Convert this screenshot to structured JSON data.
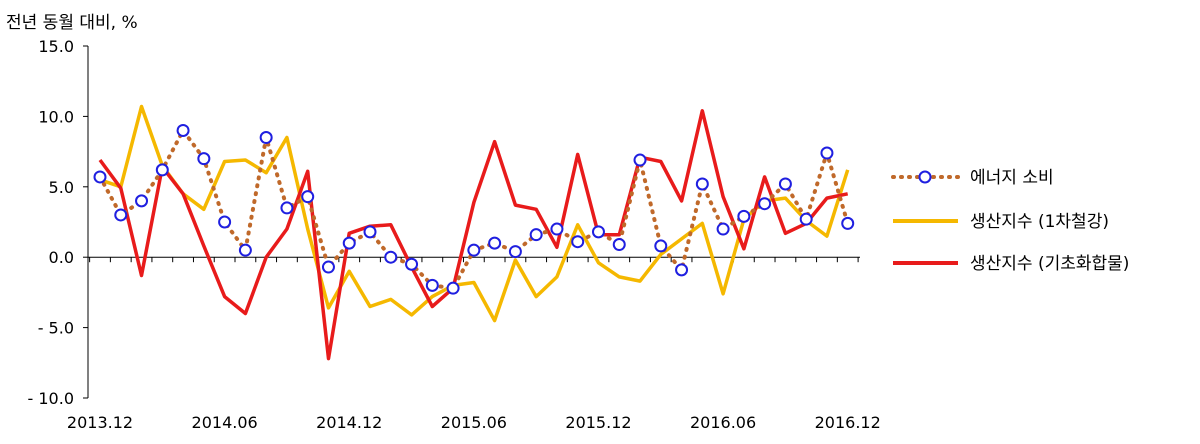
{
  "chart_data": {
    "type": "line",
    "title": "",
    "ylabel": "전년 동월 대비, %",
    "xlabel": "",
    "ylim": [
      -10,
      15
    ],
    "y_ticks": [
      "15.0",
      "10.0",
      "5.0",
      "0.0",
      "- 5.0",
      "- 10.0"
    ],
    "y_tick_values": [
      15,
      10,
      5,
      0,
      -5,
      -10
    ],
    "x_tick_labels": [
      "2013.12",
      "2014.06",
      "2014.12",
      "2015.06",
      "2015.12",
      "2016.06",
      "2016.12"
    ],
    "x_tick_indices": [
      0,
      6,
      12,
      18,
      24,
      30,
      36
    ],
    "grid": false,
    "legend_position": "right",
    "series": [
      {
        "name": "에너지 소비",
        "style": "dotted-with-markers",
        "color": "#c0692a",
        "marker_color": "#1f1fe0",
        "values": [
          5.7,
          3.0,
          4.0,
          6.2,
          9.0,
          7.0,
          2.5,
          0.5,
          8.5,
          3.5,
          4.3,
          -0.7,
          1.0,
          1.8,
          0.0,
          -0.5,
          -2.0,
          -2.2,
          0.5,
          1.0,
          0.4,
          1.6,
          2.0,
          1.1,
          1.8,
          0.9,
          6.9,
          0.8,
          -0.9,
          5.2,
          2.0,
          2.9,
          3.8,
          5.2,
          2.7,
          7.4,
          2.4
        ]
      },
      {
        "name": "생산지수 (1차철강)",
        "style": "line",
        "color": "#f5b800",
        "values": [
          5.5,
          5.0,
          10.7,
          6.5,
          4.5,
          3.4,
          6.8,
          6.9,
          6.0,
          8.5,
          2.0,
          -3.6,
          -1.0,
          -3.5,
          -3.0,
          -4.1,
          -2.8,
          -2.0,
          -1.8,
          -4.5,
          -0.2,
          -2.8,
          -1.4,
          2.3,
          -0.4,
          -1.4,
          -1.7,
          0.2,
          1.3,
          2.4,
          -2.6,
          2.7,
          4.0,
          4.2,
          2.6,
          1.5,
          6.2
        ]
      },
      {
        "name": "생산지수 (기초화합물)",
        "style": "line",
        "color": "#e81b1b",
        "values": [
          6.9,
          4.9,
          -1.3,
          6.4,
          4.5,
          0.8,
          -2.8,
          -4.0,
          0.0,
          2.0,
          6.1,
          -7.2,
          1.7,
          2.2,
          2.3,
          -0.7,
          -3.5,
          -2.2,
          3.9,
          8.2,
          3.7,
          3.4,
          0.7,
          7.3,
          1.6,
          1.6,
          7.1,
          6.8,
          4.0,
          10.4,
          4.3,
          0.6,
          5.7,
          1.7,
          2.4,
          4.2,
          4.5
        ]
      }
    ]
  }
}
